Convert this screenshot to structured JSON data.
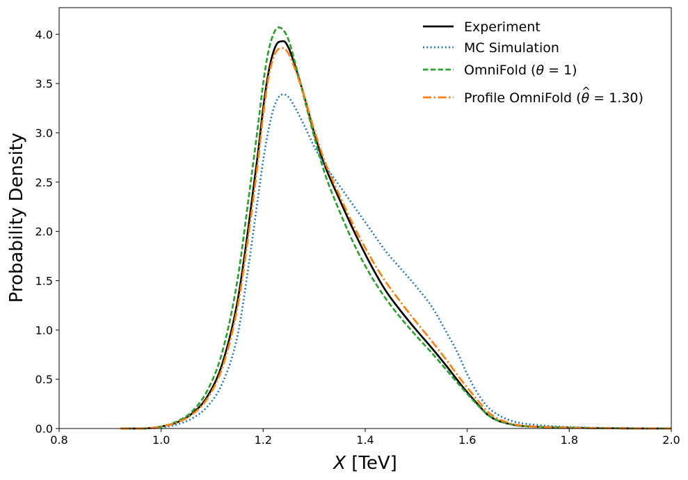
{
  "chart_data": {
    "type": "line",
    "xlabel": "X [TeV]",
    "xlabel_parts": {
      "var": "X",
      "unit": " [TeV]"
    },
    "ylabel": "Probability Density",
    "xlim": [
      0.8,
      2.0
    ],
    "ylim": [
      0,
      4.27
    ],
    "xticks": [
      0.8,
      1.0,
      1.2,
      1.4,
      1.6,
      1.8,
      2.0
    ],
    "xtick_labels": [
      "0.8",
      "1.0",
      "1.2",
      "1.4",
      "1.6",
      "1.8",
      "2.0"
    ],
    "yticks": [
      0,
      0.5,
      1.0,
      1.5,
      2.0,
      2.5,
      3.0,
      3.5,
      4.0
    ],
    "ytick_labels": [
      "0.0",
      "0.5",
      "1.0",
      "1.5",
      "2.0",
      "2.5",
      "3.0",
      "3.5",
      "4.0"
    ],
    "grid": false,
    "legend_position": "top-right",
    "series": [
      {
        "name": "Experiment",
        "color": "#000000",
        "dash": "solid",
        "x": [
          0.92,
          0.96,
          1.0,
          1.03,
          1.06,
          1.09,
          1.12,
          1.15,
          1.17,
          1.19,
          1.2,
          1.21,
          1.22,
          1.23,
          1.24,
          1.25,
          1.26,
          1.28,
          1.3,
          1.32,
          1.35,
          1.38,
          1.41,
          1.44,
          1.47,
          1.5,
          1.53,
          1.56,
          1.59,
          1.62,
          1.64,
          1.66,
          1.68,
          1.7,
          1.75,
          1.8,
          1.9,
          2.0
        ],
        "y": [
          0.0,
          0.0,
          0.02,
          0.06,
          0.15,
          0.32,
          0.66,
          1.3,
          2.0,
          2.8,
          3.25,
          3.6,
          3.82,
          3.92,
          3.93,
          3.86,
          3.72,
          3.38,
          3.0,
          2.68,
          2.32,
          1.98,
          1.67,
          1.4,
          1.19,
          1.0,
          0.82,
          0.63,
          0.43,
          0.25,
          0.14,
          0.08,
          0.05,
          0.03,
          0.015,
          0.008,
          0.002,
          0.0
        ]
      },
      {
        "name": "MC Simulation",
        "color": "#1f77b4",
        "dash": "dotted",
        "x": [
          0.92,
          0.96,
          1.0,
          1.03,
          1.06,
          1.09,
          1.12,
          1.15,
          1.17,
          1.19,
          1.2,
          1.21,
          1.22,
          1.23,
          1.24,
          1.25,
          1.26,
          1.28,
          1.3,
          1.32,
          1.35,
          1.38,
          1.41,
          1.44,
          1.47,
          1.5,
          1.53,
          1.56,
          1.58,
          1.6,
          1.62,
          1.64,
          1.66,
          1.68,
          1.7,
          1.75,
          1.8,
          1.9,
          2.0
        ],
        "y": [
          0.0,
          0.0,
          0.01,
          0.04,
          0.1,
          0.22,
          0.46,
          0.95,
          1.6,
          2.35,
          2.72,
          3.02,
          3.24,
          3.36,
          3.39,
          3.36,
          3.28,
          3.08,
          2.86,
          2.68,
          2.46,
          2.24,
          2.02,
          1.8,
          1.62,
          1.44,
          1.24,
          0.97,
          0.78,
          0.55,
          0.36,
          0.22,
          0.14,
          0.09,
          0.06,
          0.03,
          0.015,
          0.004,
          0.0
        ]
      },
      {
        "name": "OmniFold (θ = 1)",
        "label_parts": {
          "pre": "OmniFold (",
          "sym": "θ",
          "post": " = 1)"
        },
        "color": "#2ca02c",
        "dash": "dashed",
        "x": [
          0.92,
          0.96,
          1.0,
          1.03,
          1.06,
          1.09,
          1.12,
          1.15,
          1.17,
          1.19,
          1.2,
          1.21,
          1.22,
          1.23,
          1.24,
          1.25,
          1.26,
          1.28,
          1.3,
          1.32,
          1.35,
          1.38,
          1.41,
          1.44,
          1.47,
          1.5,
          1.53,
          1.56,
          1.59,
          1.62,
          1.64,
          1.66,
          1.68,
          1.7,
          1.75,
          1.8,
          1.9,
          2.0
        ],
        "y": [
          0.0,
          0.0,
          0.02,
          0.07,
          0.17,
          0.38,
          0.78,
          1.52,
          2.28,
          3.08,
          3.5,
          3.82,
          4.0,
          4.07,
          4.04,
          3.94,
          3.76,
          3.36,
          2.96,
          2.6,
          2.2,
          1.85,
          1.56,
          1.32,
          1.12,
          0.94,
          0.77,
          0.59,
          0.41,
          0.24,
          0.14,
          0.08,
          0.05,
          0.03,
          0.015,
          0.008,
          0.002,
          0.0
        ]
      },
      {
        "name": "Profile OmniFold (θ̂ = 1.30)",
        "label_parts": {
          "pre": "Profile OmniFold (",
          "sym": "θ",
          "hat": "^",
          "post": " = 1.30)"
        },
        "color": "#ff7f0e",
        "dash": "dashdot",
        "x": [
          0.92,
          0.96,
          1.0,
          1.03,
          1.06,
          1.09,
          1.12,
          1.15,
          1.17,
          1.19,
          1.2,
          1.21,
          1.22,
          1.23,
          1.24,
          1.25,
          1.26,
          1.28,
          1.3,
          1.32,
          1.35,
          1.38,
          1.41,
          1.44,
          1.47,
          1.5,
          1.53,
          1.56,
          1.59,
          1.62,
          1.64,
          1.66,
          1.68,
          1.7,
          1.75,
          1.8,
          1.9,
          2.0
        ],
        "y": [
          0.0,
          0.0,
          0.02,
          0.06,
          0.14,
          0.3,
          0.62,
          1.24,
          1.92,
          2.72,
          3.18,
          3.55,
          3.76,
          3.85,
          3.86,
          3.8,
          3.68,
          3.38,
          3.03,
          2.72,
          2.36,
          2.03,
          1.74,
          1.49,
          1.28,
          1.08,
          0.89,
          0.69,
          0.48,
          0.29,
          0.17,
          0.1,
          0.06,
          0.035,
          0.015,
          0.008,
          0.002,
          0.0
        ]
      }
    ]
  }
}
